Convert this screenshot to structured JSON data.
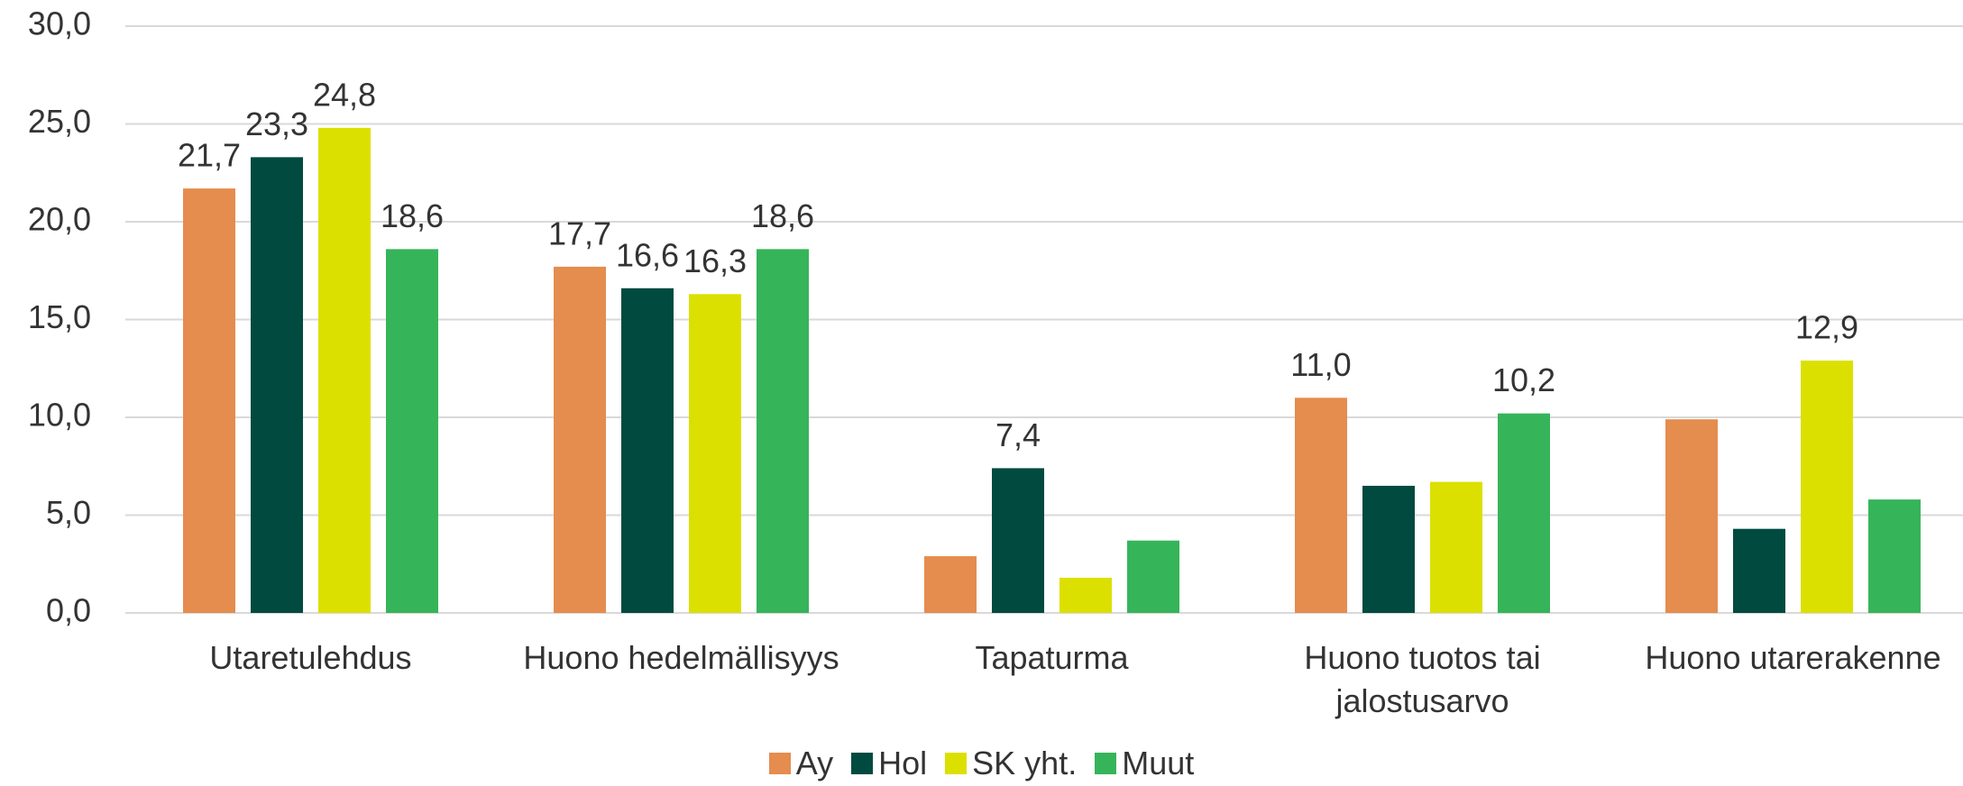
{
  "chart_data": {
    "type": "bar",
    "categories": [
      "Utaretulehdus",
      "Huono hedelmällisyys",
      "Tapaturma",
      "Huono tuotos tai jalostusarvo",
      "Huono utarerakenne"
    ],
    "series": [
      {
        "name": "Ay",
        "color": "#e58c4f",
        "values": [
          21.7,
          17.7,
          2.9,
          11.0,
          9.9
        ],
        "value_labels": [
          "21,7",
          "17,7",
          null,
          "11,0",
          null
        ]
      },
      {
        "name": "Hol",
        "color": "#004a3f",
        "values": [
          23.3,
          16.6,
          7.4,
          6.5,
          4.3
        ],
        "value_labels": [
          "23,3",
          "16,6",
          "7,4",
          null,
          null
        ]
      },
      {
        "name": "SK yht.",
        "color": "#dce000",
        "values": [
          24.8,
          16.3,
          1.8,
          6.7,
          12.9
        ],
        "value_labels": [
          "24,8",
          "16,3",
          null,
          null,
          "12,9"
        ]
      },
      {
        "name": "Muut",
        "color": "#36b45a",
        "values": [
          18.6,
          18.6,
          3.7,
          10.2,
          5.8
        ],
        "value_labels": [
          "18,6",
          "18,6",
          null,
          "10,2",
          null
        ]
      }
    ],
    "ylim": [
      0,
      30
    ],
    "yticks": [
      {
        "value": 0,
        "label": "0,0"
      },
      {
        "value": 5,
        "label": "5,0"
      },
      {
        "value": 10,
        "label": "10,0"
      },
      {
        "value": 15,
        "label": "15,0"
      },
      {
        "value": 20,
        "label": "20,0"
      },
      {
        "value": 25,
        "label": "25,0"
      },
      {
        "value": 30,
        "label": "30,0"
      }
    ],
    "grid": true
  }
}
